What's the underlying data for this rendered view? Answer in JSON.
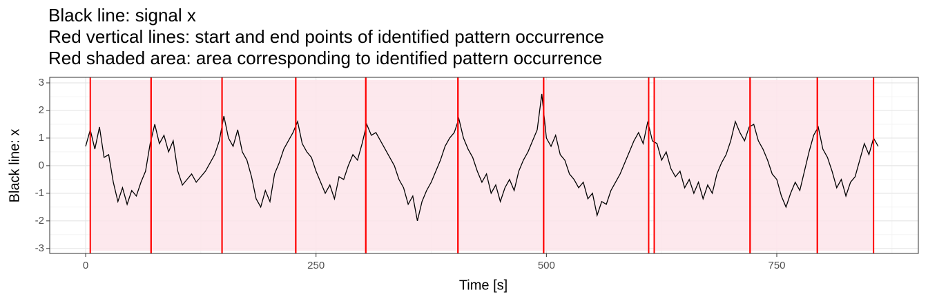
{
  "chart_data": {
    "type": "line",
    "title_lines": [
      "Black line: signal x",
      "Red vertical lines: start and end points of identified pattern occurrence",
      "Red shaded area: area corresponding to identified pattern occurrence"
    ],
    "xlabel": "Time [s]",
    "ylabel": "Black line: x",
    "x": [
      0,
      5,
      10,
      15,
      20,
      25,
      30,
      35,
      40,
      45,
      50,
      55,
      60,
      65,
      70,
      75,
      80,
      85,
      90,
      95,
      100,
      105,
      110,
      115,
      120,
      125,
      130,
      135,
      140,
      145,
      150,
      155,
      160,
      165,
      170,
      175,
      180,
      185,
      190,
      195,
      200,
      205,
      210,
      215,
      220,
      225,
      230,
      235,
      240,
      245,
      250,
      255,
      260,
      265,
      270,
      275,
      280,
      285,
      290,
      295,
      300,
      305,
      310,
      315,
      320,
      325,
      330,
      335,
      340,
      345,
      350,
      355,
      360,
      365,
      370,
      375,
      380,
      385,
      390,
      395,
      400,
      405,
      410,
      415,
      420,
      425,
      430,
      435,
      440,
      445,
      450,
      455,
      460,
      465,
      470,
      475,
      480,
      485,
      490,
      495,
      500,
      505,
      510,
      515,
      520,
      525,
      530,
      535,
      540,
      545,
      550,
      555,
      560,
      565,
      570,
      575,
      580,
      585,
      590,
      595,
      600,
      605,
      610,
      615,
      620,
      625,
      630,
      635,
      640,
      645,
      650,
      655,
      660,
      665,
      670,
      675,
      680,
      685,
      690,
      695,
      700,
      705,
      710,
      715,
      720,
      725,
      730,
      735,
      740,
      745,
      750,
      755,
      760,
      765,
      770,
      775,
      780,
      785,
      790,
      795,
      800,
      805,
      810,
      815,
      820,
      825,
      830,
      835,
      840,
      845,
      850,
      855,
      860
    ],
    "series": [
      {
        "color": "#000000",
        "values": [
          0.7,
          1.3,
          0.6,
          1.4,
          0.3,
          0.4,
          -0.6,
          -1.3,
          -0.8,
          -1.4,
          -0.9,
          -1.1,
          -0.6,
          -0.2,
          0.8,
          1.5,
          0.8,
          1.1,
          0.5,
          0.9,
          -0.2,
          -0.7,
          -0.5,
          -0.3,
          -0.6,
          -0.4,
          -0.2,
          0.1,
          0.4,
          0.9,
          1.8,
          1.0,
          0.7,
          1.3,
          0.5,
          0.2,
          -0.4,
          -1.2,
          -1.5,
          -0.9,
          -1.3,
          -0.3,
          0.1,
          0.6,
          0.9,
          1.2,
          1.6,
          0.8,
          0.5,
          0.3,
          -0.2,
          -0.6,
          -1.0,
          -0.7,
          -1.2,
          -0.4,
          -0.5,
          0.0,
          0.4,
          0.2,
          0.8,
          1.5,
          1.1,
          1.2,
          0.9,
          0.6,
          0.3,
          0.0,
          -0.5,
          -0.8,
          -1.4,
          -1.1,
          -2.0,
          -1.3,
          -0.9,
          -0.6,
          -0.2,
          0.2,
          0.7,
          1.0,
          1.2,
          1.7,
          1.0,
          0.6,
          0.3,
          -0.2,
          -0.6,
          -0.3,
          -1.0,
          -0.7,
          -1.3,
          -0.8,
          -0.5,
          -0.9,
          -0.2,
          0.2,
          0.5,
          0.9,
          1.3,
          2.6,
          1.0,
          0.7,
          1.1,
          0.4,
          0.2,
          -0.3,
          -0.5,
          -0.8,
          -0.6,
          -1.2,
          -1.0,
          -1.8,
          -1.3,
          -1.4,
          -0.9,
          -0.6,
          -0.3,
          0.1,
          0.5,
          0.9,
          1.2,
          0.8,
          1.6,
          0.9,
          0.8,
          0.2,
          0.5,
          -0.1,
          -0.4,
          -0.2,
          -0.8,
          -0.5,
          -1.0,
          -0.6,
          -1.2,
          -0.7,
          -1.0,
          -0.3,
          0.1,
          0.4,
          0.9,
          1.6,
          1.2,
          0.9,
          1.4,
          1.5,
          0.9,
          0.6,
          0.2,
          -0.3,
          -0.5,
          -1.1,
          -1.5,
          -1.0,
          -0.6,
          -0.9,
          -0.2,
          0.5,
          1.1,
          1.4,
          0.6,
          0.3,
          -0.2,
          -0.8,
          -0.5,
          -1.1,
          -0.6,
          -0.4,
          0.2,
          0.8,
          0.4,
          1.0,
          0.7
        ]
      }
    ],
    "occurrences": [
      {
        "start": 5,
        "end": 71
      },
      {
        "start": 71,
        "end": 148
      },
      {
        "start": 148,
        "end": 228
      },
      {
        "start": 228,
        "end": 304
      },
      {
        "start": 304,
        "end": 404
      },
      {
        "start": 404,
        "end": 497
      },
      {
        "start": 497,
        "end": 611
      },
      {
        "start": 617,
        "end": 721
      },
      {
        "start": 721,
        "end": 794
      },
      {
        "start": 794,
        "end": 855
      }
    ],
    "occurrence_line_color": "#ff0000",
    "occurrence_shade_color": "#fde4ea",
    "xlim": [
      -39,
      903.6
    ],
    "ylim": [
      -3.18,
      3.2
    ],
    "xticks": [
      0,
      250,
      500,
      750
    ],
    "yticks": [
      -3,
      -2,
      -1,
      0,
      1,
      2,
      3
    ],
    "grid": true
  }
}
